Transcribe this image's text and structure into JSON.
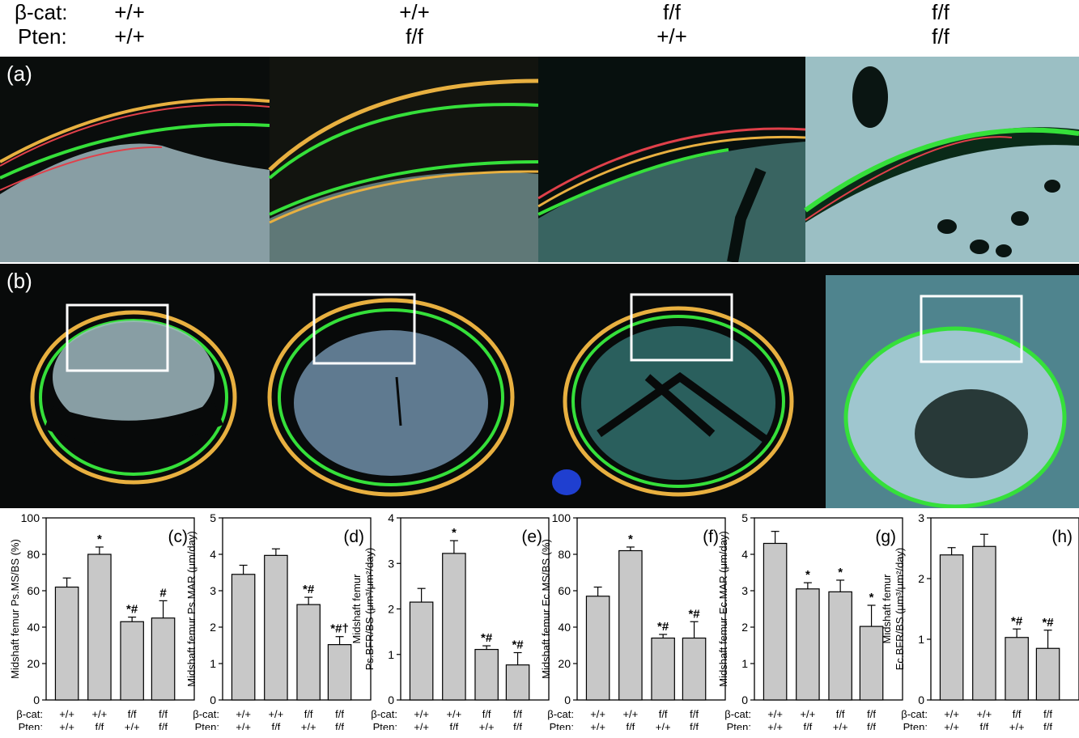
{
  "header": {
    "bcat_label": "β-cat:",
    "pten_label": "Pten:",
    "columns": [
      {
        "bcat": "+/+",
        "pten": "+/+"
      },
      {
        "bcat": "+/+",
        "pten": "f/f"
      },
      {
        "bcat": "f/f",
        "pten": "+/+"
      },
      {
        "bcat": "f/f",
        "pten": "f/f"
      }
    ]
  },
  "panels": {
    "a": "(a)",
    "b": "(b)"
  },
  "colors": {
    "bar_fill": "#c8c8c8",
    "micro_bg": "#0a0d0c",
    "tissue": "#9fb9c0",
    "label_green": "#35e03a",
    "label_red": "#e0404a",
    "label_orange": "#e8b040",
    "box_white": "#ffffff"
  },
  "xaxis": {
    "bcat_label": "β-cat:",
    "pten_label": "Pten:",
    "bcat": [
      "+/+",
      "+/+",
      "f/f",
      "f/f"
    ],
    "pten": [
      "+/+",
      "f/f",
      "+/+",
      "f/f"
    ]
  },
  "chart_data": [
    {
      "type": "bar",
      "panel": "(c)",
      "ylabel": "Midshaft femur Ps.MS/BS (%)",
      "ylim": [
        0,
        100
      ],
      "yticks": [
        0,
        20,
        40,
        60,
        80,
        100
      ],
      "values": [
        62,
        80,
        43,
        45
      ],
      "errors": [
        5,
        4,
        2.5,
        9.5
      ],
      "marks": [
        "",
        "*",
        "*#",
        "#"
      ]
    },
    {
      "type": "bar",
      "panel": "(d)",
      "ylabel": "Midshaft femur Ps.MAR (μm/day)",
      "ylim": [
        0,
        5
      ],
      "yticks": [
        0,
        1,
        2,
        3,
        4,
        5
      ],
      "values": [
        3.45,
        3.97,
        2.62,
        1.52
      ],
      "errors": [
        0.25,
        0.18,
        0.2,
        0.22
      ],
      "marks": [
        "",
        "",
        "*#",
        "*#†"
      ]
    },
    {
      "type": "bar",
      "panel": "(e)",
      "ylabel": "Ps.BFR/BS (μm³/μm²/day)",
      "ylabel_top": "Midshaft femur",
      "ylim": [
        0,
        4
      ],
      "yticks": [
        0,
        1,
        2,
        3,
        4
      ],
      "values": [
        2.15,
        3.22,
        1.11,
        0.77
      ],
      "errors": [
        0.3,
        0.28,
        0.08,
        0.27
      ],
      "marks": [
        "",
        "*",
        "*#",
        "*#"
      ]
    },
    {
      "type": "bar",
      "panel": "(f)",
      "ylabel": "Midshaft femur Ec.MS/BS (%)",
      "ylim": [
        0,
        100
      ],
      "yticks": [
        0,
        20,
        40,
        60,
        80,
        100
      ],
      "values": [
        57,
        82,
        34,
        34
      ],
      "errors": [
        5,
        2,
        2,
        9
      ],
      "marks": [
        "",
        "*",
        "*#",
        "*#"
      ]
    },
    {
      "type": "bar",
      "panel": "(g)",
      "ylabel": "Midshaft femur Ec.MAR (μm/day)",
      "ylim": [
        0,
        5
      ],
      "yticks": [
        0,
        1,
        2,
        3,
        4,
        5
      ],
      "values": [
        4.3,
        3.05,
        2.97,
        2.02
      ],
      "errors": [
        0.33,
        0.17,
        0.32,
        0.58
      ],
      "marks": [
        "",
        "*",
        "*",
        "*"
      ]
    },
    {
      "type": "bar",
      "panel": "(h)",
      "ylabel": "Ec.BFR/BS (μm³/μm²/day)",
      "ylabel_top": "Midshaft femur",
      "ylim": [
        0,
        3
      ],
      "yticks": [
        0,
        1,
        2,
        3
      ],
      "values": [
        2.39,
        2.53,
        1.03,
        0.85
      ],
      "errors": [
        0.12,
        0.2,
        0.14,
        0.3
      ],
      "marks": [
        "",
        "",
        "*#",
        "*#"
      ]
    }
  ]
}
